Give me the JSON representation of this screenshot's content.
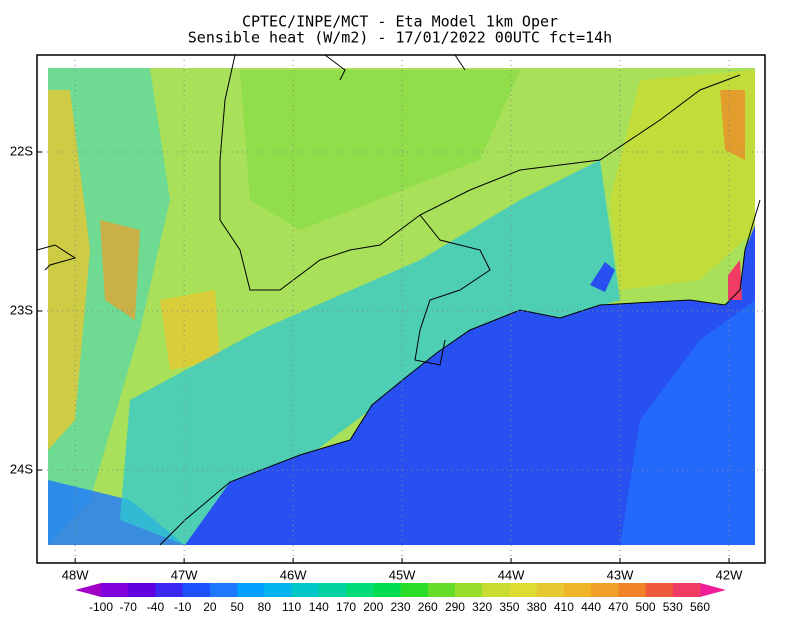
{
  "header": {
    "title": "CPTEC/INPE/MCT -  Eta Model 1km Oper",
    "subtitle": "Sensible heat (W/m2) - 17/01/2022 00UTC fct=14h"
  },
  "map": {
    "lon_range": [
      -48.35,
      -41.67
    ],
    "lat_range": [
      -21.39,
      -24.585
    ],
    "lon_ticks": [
      {
        "value": -48,
        "label": "48W"
      },
      {
        "value": -47,
        "label": "47W"
      },
      {
        "value": -46,
        "label": "46W"
      },
      {
        "value": -45,
        "label": "45W"
      },
      {
        "value": -44,
        "label": "44W"
      },
      {
        "value": -43,
        "label": "43W"
      },
      {
        "value": -42,
        "label": "42W"
      }
    ],
    "lat_ticks": [
      {
        "value": -22,
        "label": "22S"
      },
      {
        "value": -23,
        "label": "23S"
      },
      {
        "value": -24,
        "label": "24S"
      }
    ],
    "grid": true
  },
  "colorbar": {
    "labels": [
      -100,
      -70,
      -40,
      -10,
      20,
      50,
      80,
      110,
      140,
      170,
      200,
      230,
      260,
      290,
      320,
      350,
      380,
      410,
      440,
      470,
      500,
      530,
      560
    ],
    "under_color": "#a000c8",
    "over_color": "#f01e96",
    "colors": [
      "#8200dc",
      "#6000e0",
      "#3c28f0",
      "#1e50ff",
      "#1e78ff",
      "#00a0ff",
      "#00b4f0",
      "#00c8c8",
      "#00d2a0",
      "#00dc78",
      "#00dc50",
      "#28dc28",
      "#64dc28",
      "#96dc28",
      "#c8dc32",
      "#dcdc32",
      "#e6c832",
      "#f0b428",
      "#f0a028",
      "#f08228",
      "#f05a3c",
      "#f03c64"
    ]
  }
}
